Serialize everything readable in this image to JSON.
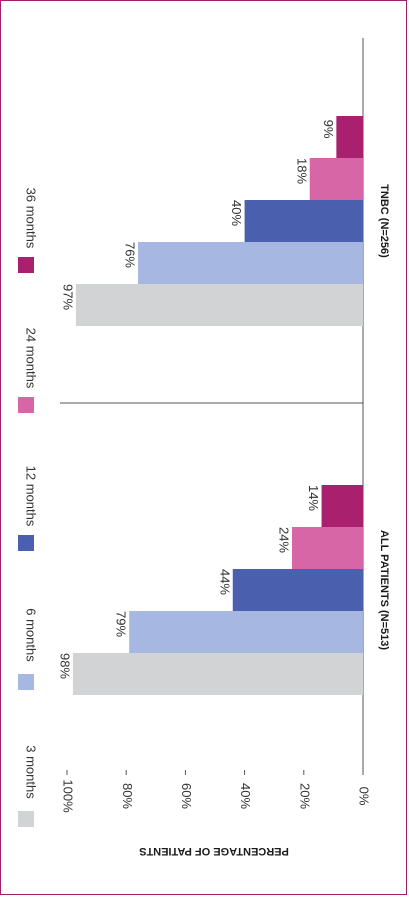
{
  "chart_data": {
    "type": "bar",
    "orientation": "horizontal",
    "categories": [
      "ALL PATIENTS (N=513)",
      "TNBC (N=256)"
    ],
    "series": [
      {
        "name": "3 months",
        "color": "#d1d3d4",
        "values": [
          98,
          97
        ]
      },
      {
        "name": "6 months",
        "color": "#a6b8e1",
        "values": [
          79,
          76
        ]
      },
      {
        "name": "12 months",
        "color": "#4a5fae",
        "values": [
          44,
          40
        ]
      },
      {
        "name": "24 months",
        "color": "#d766a6",
        "values": [
          24,
          18
        ]
      },
      {
        "name": "36 months",
        "color": "#a8206e",
        "values": [
          14,
          9
        ]
      }
    ],
    "data_labels": [
      [
        "98%",
        "79%",
        "44%",
        "24%",
        "14%"
      ],
      [
        "97%",
        "76%",
        "40%",
        "18%",
        "9%"
      ]
    ],
    "xlabel": "PERCENTAGE OF PATIENTS",
    "xlim": [
      0,
      100
    ],
    "xticks": [
      0,
      20,
      40,
      60,
      80,
      100
    ],
    "xtick_labels": [
      "0%",
      "20%",
      "40%",
      "60%",
      "80%",
      "100%"
    ],
    "legend_position": "left",
    "grid": false
  },
  "colors": {
    "border": "#a0206e",
    "axis": "#555555",
    "text": "#333333"
  }
}
